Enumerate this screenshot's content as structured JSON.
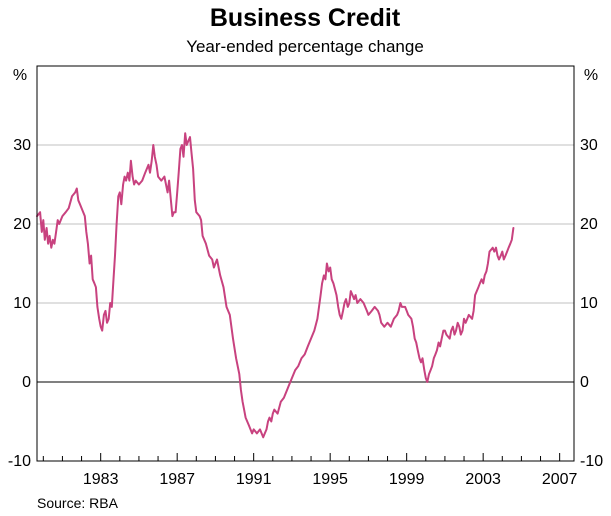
{
  "chart_data": {
    "type": "line",
    "title": "Business Credit",
    "subtitle": "Year-ended percentage change",
    "y_unit_left": "%",
    "y_unit_right": "%",
    "ylim": [
      -10,
      40
    ],
    "y_ticks": [
      {
        "value": 30,
        "label": "30"
      },
      {
        "value": 20,
        "label": "20"
      },
      {
        "value": 10,
        "label": "10"
      },
      {
        "value": 0,
        "label": "0"
      },
      {
        "value": -10,
        "label": "-10"
      }
    ],
    "xlim": [
      1979.67,
      2007.75
    ],
    "x_ticks": [
      {
        "value": 1983,
        "label": "1983"
      },
      {
        "value": 1987,
        "label": "1987"
      },
      {
        "value": 1991,
        "label": "1991"
      },
      {
        "value": 1995,
        "label": "1995"
      },
      {
        "value": 1999,
        "label": "1999"
      },
      {
        "value": 2003,
        "label": "2003"
      },
      {
        "value": 2007,
        "label": "2007"
      }
    ],
    "x_minor_ticks": [
      1980,
      1981,
      1982,
      1984,
      1985,
      1986,
      1988,
      1989,
      1990,
      1992,
      1993,
      1994,
      1996,
      1997,
      1998,
      2000,
      2001,
      2002,
      2004,
      2005,
      2006
    ],
    "grid": "horizontal",
    "zero_line": true,
    "line_color": "#c8427f",
    "source": "Source: RBA",
    "series": [
      {
        "points": [
          [
            1979.67,
            21.0
          ],
          [
            1979.83,
            21.5
          ],
          [
            1979.92,
            19.0
          ],
          [
            1980.0,
            20.5
          ],
          [
            1980.08,
            18.0
          ],
          [
            1980.17,
            19.5
          ],
          [
            1980.25,
            17.5
          ],
          [
            1980.33,
            18.5
          ],
          [
            1980.42,
            17.0
          ],
          [
            1980.5,
            18.0
          ],
          [
            1980.58,
            17.5
          ],
          [
            1980.67,
            19.0
          ],
          [
            1980.75,
            20.5
          ],
          [
            1980.83,
            20.0
          ],
          [
            1981.0,
            21.0
          ],
          [
            1981.17,
            21.5
          ],
          [
            1981.33,
            22.0
          ],
          [
            1981.5,
            23.5
          ],
          [
            1981.67,
            24.0
          ],
          [
            1981.75,
            24.5
          ],
          [
            1981.83,
            23.0
          ],
          [
            1981.92,
            22.5
          ],
          [
            1982.0,
            22.0
          ],
          [
            1982.17,
            21.0
          ],
          [
            1982.25,
            19.0
          ],
          [
            1982.33,
            17.5
          ],
          [
            1982.42,
            15.0
          ],
          [
            1982.5,
            16.0
          ],
          [
            1982.58,
            13.0
          ],
          [
            1982.67,
            12.5
          ],
          [
            1982.75,
            12.0
          ],
          [
            1982.83,
            9.5
          ],
          [
            1982.92,
            8.0
          ],
          [
            1983.0,
            7.0
          ],
          [
            1983.08,
            6.5
          ],
          [
            1983.17,
            8.5
          ],
          [
            1983.25,
            9.0
          ],
          [
            1983.33,
            7.5
          ],
          [
            1983.42,
            8.0
          ],
          [
            1983.5,
            10.0
          ],
          [
            1983.58,
            9.5
          ],
          [
            1983.67,
            13.0
          ],
          [
            1983.75,
            16.0
          ],
          [
            1983.83,
            20.0
          ],
          [
            1983.92,
            23.5
          ],
          [
            1984.0,
            24.0
          ],
          [
            1984.08,
            22.5
          ],
          [
            1984.17,
            25.0
          ],
          [
            1984.25,
            26.0
          ],
          [
            1984.33,
            25.5
          ],
          [
            1984.42,
            26.5
          ],
          [
            1984.5,
            25.5
          ],
          [
            1984.58,
            28.0
          ],
          [
            1984.67,
            26.0
          ],
          [
            1984.75,
            25.0
          ],
          [
            1984.83,
            25.5
          ],
          [
            1985.0,
            25.0
          ],
          [
            1985.17,
            25.5
          ],
          [
            1985.33,
            26.5
          ],
          [
            1985.5,
            27.5
          ],
          [
            1985.58,
            26.5
          ],
          [
            1985.67,
            28.0
          ],
          [
            1985.75,
            30.0
          ],
          [
            1985.83,
            28.5
          ],
          [
            1985.92,
            27.5
          ],
          [
            1986.0,
            26.0
          ],
          [
            1986.17,
            25.5
          ],
          [
            1986.33,
            26.0
          ],
          [
            1986.5,
            24.0
          ],
          [
            1986.58,
            25.5
          ],
          [
            1986.67,
            23.0
          ],
          [
            1986.75,
            21.0
          ],
          [
            1986.83,
            21.5
          ],
          [
            1986.92,
            21.5
          ],
          [
            1987.0,
            24.0
          ],
          [
            1987.08,
            26.5
          ],
          [
            1987.17,
            29.5
          ],
          [
            1987.25,
            30.0
          ],
          [
            1987.33,
            28.5
          ],
          [
            1987.42,
            31.5
          ],
          [
            1987.5,
            30.0
          ],
          [
            1987.58,
            30.5
          ],
          [
            1987.67,
            31.0
          ],
          [
            1987.75,
            29.0
          ],
          [
            1987.83,
            27.0
          ],
          [
            1987.92,
            23.0
          ],
          [
            1988.0,
            21.5
          ],
          [
            1988.17,
            21.0
          ],
          [
            1988.25,
            20.5
          ],
          [
            1988.33,
            18.5
          ],
          [
            1988.5,
            17.5
          ],
          [
            1988.67,
            16.0
          ],
          [
            1988.83,
            15.5
          ],
          [
            1988.92,
            14.5
          ],
          [
            1989.0,
            15.0
          ],
          [
            1989.08,
            15.5
          ],
          [
            1989.25,
            13.5
          ],
          [
            1989.42,
            12.0
          ],
          [
            1989.58,
            9.5
          ],
          [
            1989.75,
            8.5
          ],
          [
            1989.92,
            5.5
          ],
          [
            1990.08,
            3.0
          ],
          [
            1990.25,
            1.0
          ],
          [
            1990.33,
            -1.0
          ],
          [
            1990.42,
            -2.5
          ],
          [
            1990.5,
            -3.5
          ],
          [
            1990.58,
            -4.5
          ],
          [
            1990.75,
            -5.5
          ],
          [
            1990.92,
            -6.5
          ],
          [
            1991.0,
            -6.0
          ],
          [
            1991.17,
            -6.5
          ],
          [
            1991.33,
            -6.0
          ],
          [
            1991.5,
            -7.0
          ],
          [
            1991.58,
            -6.5
          ],
          [
            1991.67,
            -6.0
          ],
          [
            1991.75,
            -5.0
          ],
          [
            1991.83,
            -4.5
          ],
          [
            1991.92,
            -5.0
          ],
          [
            1992.0,
            -4.0
          ],
          [
            1992.08,
            -3.5
          ],
          [
            1992.25,
            -4.0
          ],
          [
            1992.42,
            -2.5
          ],
          [
            1992.58,
            -2.0
          ],
          [
            1992.75,
            -1.0
          ],
          [
            1992.83,
            -0.5
          ],
          [
            1993.0,
            0.5
          ],
          [
            1993.17,
            1.5
          ],
          [
            1993.33,
            2.0
          ],
          [
            1993.5,
            3.0
          ],
          [
            1993.67,
            3.5
          ],
          [
            1993.83,
            4.5
          ],
          [
            1994.0,
            5.5
          ],
          [
            1994.17,
            6.5
          ],
          [
            1994.33,
            8.0
          ],
          [
            1994.5,
            11.0
          ],
          [
            1994.58,
            12.5
          ],
          [
            1994.67,
            13.5
          ],
          [
            1994.75,
            13.0
          ],
          [
            1994.83,
            15.0
          ],
          [
            1994.92,
            14.0
          ],
          [
            1995.0,
            14.5
          ],
          [
            1995.08,
            13.0
          ],
          [
            1995.17,
            12.5
          ],
          [
            1995.33,
            11.0
          ],
          [
            1995.42,
            9.5
          ],
          [
            1995.5,
            8.5
          ],
          [
            1995.58,
            8.0
          ],
          [
            1995.67,
            9.0
          ],
          [
            1995.75,
            10.0
          ],
          [
            1995.83,
            10.5
          ],
          [
            1995.92,
            9.5
          ],
          [
            1996.0,
            10.0
          ],
          [
            1996.08,
            11.5
          ],
          [
            1996.17,
            11.0
          ],
          [
            1996.25,
            10.5
          ],
          [
            1996.33,
            11.0
          ],
          [
            1996.42,
            10.0
          ],
          [
            1996.58,
            10.5
          ],
          [
            1996.75,
            10.0
          ],
          [
            1996.83,
            9.5
          ],
          [
            1996.92,
            9.0
          ],
          [
            1997.0,
            8.5
          ],
          [
            1997.17,
            9.0
          ],
          [
            1997.33,
            9.5
          ],
          [
            1997.5,
            9.0
          ],
          [
            1997.58,
            8.5
          ],
          [
            1997.67,
            7.5
          ],
          [
            1997.83,
            7.0
          ],
          [
            1998.0,
            7.5
          ],
          [
            1998.17,
            7.0
          ],
          [
            1998.33,
            8.0
          ],
          [
            1998.5,
            8.5
          ],
          [
            1998.58,
            9.0
          ],
          [
            1998.67,
            10.0
          ],
          [
            1998.75,
            9.5
          ],
          [
            1998.92,
            9.5
          ],
          [
            1999.0,
            9.0
          ],
          [
            1999.08,
            8.5
          ],
          [
            1999.25,
            8.0
          ],
          [
            1999.33,
            7.0
          ],
          [
            1999.42,
            5.5
          ],
          [
            1999.5,
            5.0
          ],
          [
            1999.58,
            4.0
          ],
          [
            1999.67,
            3.0
          ],
          [
            1999.75,
            2.5
          ],
          [
            1999.83,
            3.0
          ],
          [
            1999.92,
            1.5
          ],
          [
            2000.0,
            0.5
          ],
          [
            2000.08,
            0.0
          ],
          [
            2000.17,
            1.0
          ],
          [
            2000.25,
            1.5
          ],
          [
            2000.33,
            2.0
          ],
          [
            2000.42,
            3.0
          ],
          [
            2000.5,
            3.5
          ],
          [
            2000.58,
            4.0
          ],
          [
            2000.67,
            5.0
          ],
          [
            2000.75,
            4.5
          ],
          [
            2000.83,
            5.5
          ],
          [
            2000.92,
            6.5
          ],
          [
            2001.0,
            6.5
          ],
          [
            2001.08,
            6.0
          ],
          [
            2001.25,
            5.5
          ],
          [
            2001.33,
            6.5
          ],
          [
            2001.42,
            7.0
          ],
          [
            2001.5,
            6.0
          ],
          [
            2001.58,
            6.5
          ],
          [
            2001.67,
            7.5
          ],
          [
            2001.75,
            7.0
          ],
          [
            2001.83,
            6.0
          ],
          [
            2001.92,
            6.5
          ],
          [
            2002.0,
            8.0
          ],
          [
            2002.08,
            7.5
          ],
          [
            2002.17,
            8.0
          ],
          [
            2002.25,
            8.5
          ],
          [
            2002.42,
            8.0
          ],
          [
            2002.5,
            9.0
          ],
          [
            2002.58,
            11.0
          ],
          [
            2002.75,
            12.0
          ],
          [
            2002.83,
            12.5
          ],
          [
            2002.92,
            13.0
          ],
          [
            2003.0,
            12.5
          ],
          [
            2003.08,
            13.5
          ],
          [
            2003.17,
            14.0
          ],
          [
            2003.25,
            15.0
          ],
          [
            2003.33,
            16.5
          ],
          [
            2003.5,
            17.0
          ],
          [
            2003.58,
            16.5
          ],
          [
            2003.67,
            17.0
          ],
          [
            2003.75,
            16.0
          ],
          [
            2003.83,
            15.5
          ],
          [
            2003.92,
            16.0
          ],
          [
            2004.0,
            16.5
          ],
          [
            2004.08,
            15.5
          ],
          [
            2004.17,
            16.0
          ],
          [
            2004.25,
            16.5
          ],
          [
            2004.33,
            17.0
          ],
          [
            2004.42,
            17.5
          ],
          [
            2004.5,
            18.0
          ],
          [
            2004.58,
            19.5
          ]
        ]
      }
    ]
  }
}
